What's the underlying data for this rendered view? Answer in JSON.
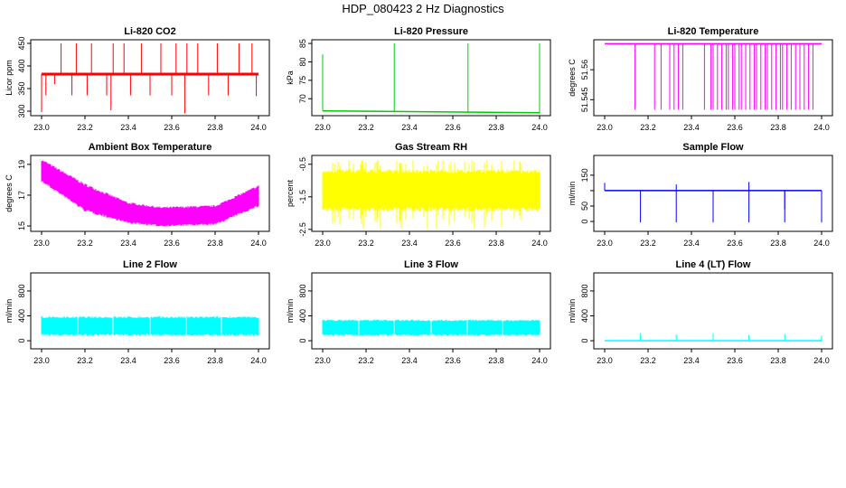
{
  "title": "HDP_080423  2 Hz Diagnostics",
  "chart_data": [
    {
      "type": "line",
      "title": "Li-820 CO2",
      "ylabel": "Licor ppm",
      "color": "#ff0000",
      "xlim": [
        23.0,
        24.0
      ],
      "ylim": [
        290,
        458
      ],
      "yticks": [
        300,
        350,
        400,
        450
      ],
      "baseline": 382,
      "spikes": [
        [
          23.0,
          298
        ],
        [
          23.02,
          335
        ],
        [
          23.06,
          360
        ],
        [
          23.09,
          450
        ],
        [
          23.14,
          335
        ],
        [
          23.16,
          450
        ],
        [
          23.21,
          335
        ],
        [
          23.23,
          450
        ],
        [
          23.3,
          335
        ],
        [
          23.32,
          302
        ],
        [
          23.33,
          450
        ],
        [
          23.38,
          450
        ],
        [
          23.41,
          335
        ],
        [
          23.46,
          450
        ],
        [
          23.5,
          335
        ],
        [
          23.55,
          450
        ],
        [
          23.6,
          335
        ],
        [
          23.62,
          450
        ],
        [
          23.66,
          295
        ],
        [
          23.67,
          450
        ],
        [
          23.72,
          450
        ],
        [
          23.77,
          335
        ],
        [
          23.81,
          450
        ],
        [
          23.86,
          335
        ],
        [
          23.91,
          450
        ],
        [
          23.97,
          450
        ],
        [
          23.99,
          333
        ]
      ]
    },
    {
      "type": "line",
      "title": "Li-820 Pressure",
      "ylabel": "kPa",
      "color": "#00cc00",
      "xlim": [
        23.0,
        24.0
      ],
      "ylim": [
        65.4,
        86
      ],
      "yticks": [
        70,
        75,
        80,
        85
      ],
      "baseline_start": 66.7,
      "baseline_end": 66.2,
      "spikes": [
        [
          23.0,
          82
        ],
        [
          23.33,
          85
        ],
        [
          23.67,
          85
        ],
        [
          24.0,
          85
        ]
      ]
    },
    {
      "type": "line",
      "title": "Li-820 Temperature",
      "ylabel": "degrees C",
      "color": "#ff00ff",
      "xlim": [
        23.0,
        24.0
      ],
      "ylim": [
        51.537,
        51.575
      ],
      "yticks": [
        51.545,
        51.56
      ],
      "baseline": 51.573,
      "drop_to": 51.54,
      "drops": [
        23.14,
        23.23,
        23.26,
        23.3,
        23.32,
        23.34,
        23.36,
        23.46,
        23.49,
        23.5,
        23.52,
        23.54,
        23.56,
        23.57,
        23.59,
        23.6,
        23.62,
        23.63,
        23.65,
        23.67,
        23.69,
        23.7,
        23.72,
        23.74,
        23.75,
        23.77,
        23.79,
        23.81,
        23.82,
        23.84,
        23.86,
        23.88,
        23.9,
        23.92,
        23.94,
        23.96
      ]
    },
    {
      "type": "band",
      "title": "Ambient Box Temperature",
      "ylabel": "degrees C",
      "color": "#ff00ff",
      "xlim": [
        23.0,
        24.0
      ],
      "ylim": [
        14.65,
        19.58
      ],
      "yticks": [
        15,
        17,
        19
      ],
      "upper": [
        [
          23.0,
          19.3
        ],
        [
          23.2,
          17.7
        ],
        [
          23.4,
          16.5
        ],
        [
          23.55,
          16.2
        ],
        [
          23.8,
          16.3
        ],
        [
          24.0,
          17.6
        ]
      ],
      "lower": [
        [
          23.0,
          17.9
        ],
        [
          23.2,
          16.0
        ],
        [
          23.4,
          15.2
        ],
        [
          23.55,
          15.0
        ],
        [
          23.8,
          15.1
        ],
        [
          24.0,
          16.3
        ]
      ]
    },
    {
      "type": "band",
      "title": "Gas Stream RH",
      "ylabel": "percent",
      "color": "#ffff00",
      "xlim": [
        23.0,
        24.0
      ],
      "ylim": [
        -2.56,
        -0.23
      ],
      "yticks": [
        -2.5,
        -1.5,
        -0.5
      ],
      "upper": [
        [
          23.0,
          -0.7
        ],
        [
          24.0,
          -0.7
        ]
      ],
      "lower": [
        [
          23.0,
          -1.9
        ],
        [
          24.0,
          -1.9
        ]
      ],
      "extreme": [
        -0.55,
        -2.5
      ]
    },
    {
      "type": "line",
      "title": "Sample Flow",
      "ylabel": "ml/min",
      "color": "#0000ff",
      "xlim": [
        23.0,
        24.0
      ],
      "ylim": [
        -32,
        214
      ],
      "yticks": [
        0,
        50,
        100,
        150
      ],
      "ytick_labels": [
        "0",
        "50",
        "",
        "150"
      ],
      "baseline": 100,
      "spikes": [
        [
          23.0,
          125
        ],
        [
          23.165,
          -3
        ],
        [
          23.33,
          120
        ],
        [
          23.33,
          -3
        ],
        [
          23.5,
          -3
        ],
        [
          23.665,
          128
        ],
        [
          23.665,
          -3
        ],
        [
          23.83,
          40
        ],
        [
          23.83,
          -3
        ],
        [
          24.0,
          -3
        ]
      ]
    },
    {
      "type": "band",
      "title": "Line 2 Flow",
      "ylabel": "ml/min",
      "color": "#00ffff",
      "xlim": [
        23.0,
        24.0
      ],
      "ylim": [
        -130,
        1090
      ],
      "yticks": [
        0,
        400,
        800
      ],
      "upper": [
        [
          23.0,
          380
        ],
        [
          24.0,
          380
        ]
      ],
      "lower": [
        [
          23.0,
          90
        ],
        [
          24.0,
          90
        ]
      ],
      "gaps": [
        23.165,
        23.33,
        23.5,
        23.665,
        23.83
      ]
    },
    {
      "type": "band",
      "title": "Line 3 Flow",
      "ylabel": "ml/min",
      "color": "#00ffff",
      "xlim": [
        23.0,
        24.0
      ],
      "ylim": [
        -130,
        1090
      ],
      "yticks": [
        0,
        400,
        800
      ],
      "upper": [
        [
          23.0,
          330
        ],
        [
          24.0,
          330
        ]
      ],
      "lower": [
        [
          23.0,
          90
        ],
        [
          24.0,
          90
        ]
      ],
      "gaps": [
        23.165,
        23.33,
        23.5,
        23.665,
        23.83
      ]
    },
    {
      "type": "line",
      "title": "Line 4 (LT) Flow",
      "ylabel": "ml/min",
      "color": "#00ffff",
      "xlim": [
        23.0,
        24.0
      ],
      "ylim": [
        -130,
        1090
      ],
      "yticks": [
        0,
        400,
        800
      ],
      "baseline": 0,
      "spikes": [
        [
          23.165,
          120
        ],
        [
          23.33,
          100
        ],
        [
          23.5,
          120
        ],
        [
          23.665,
          90
        ],
        [
          23.83,
          110
        ],
        [
          24.0,
          80
        ]
      ]
    }
  ],
  "xticks": [
    "23.0",
    "23.2",
    "23.4",
    "23.6",
    "23.8",
    "24.0"
  ]
}
